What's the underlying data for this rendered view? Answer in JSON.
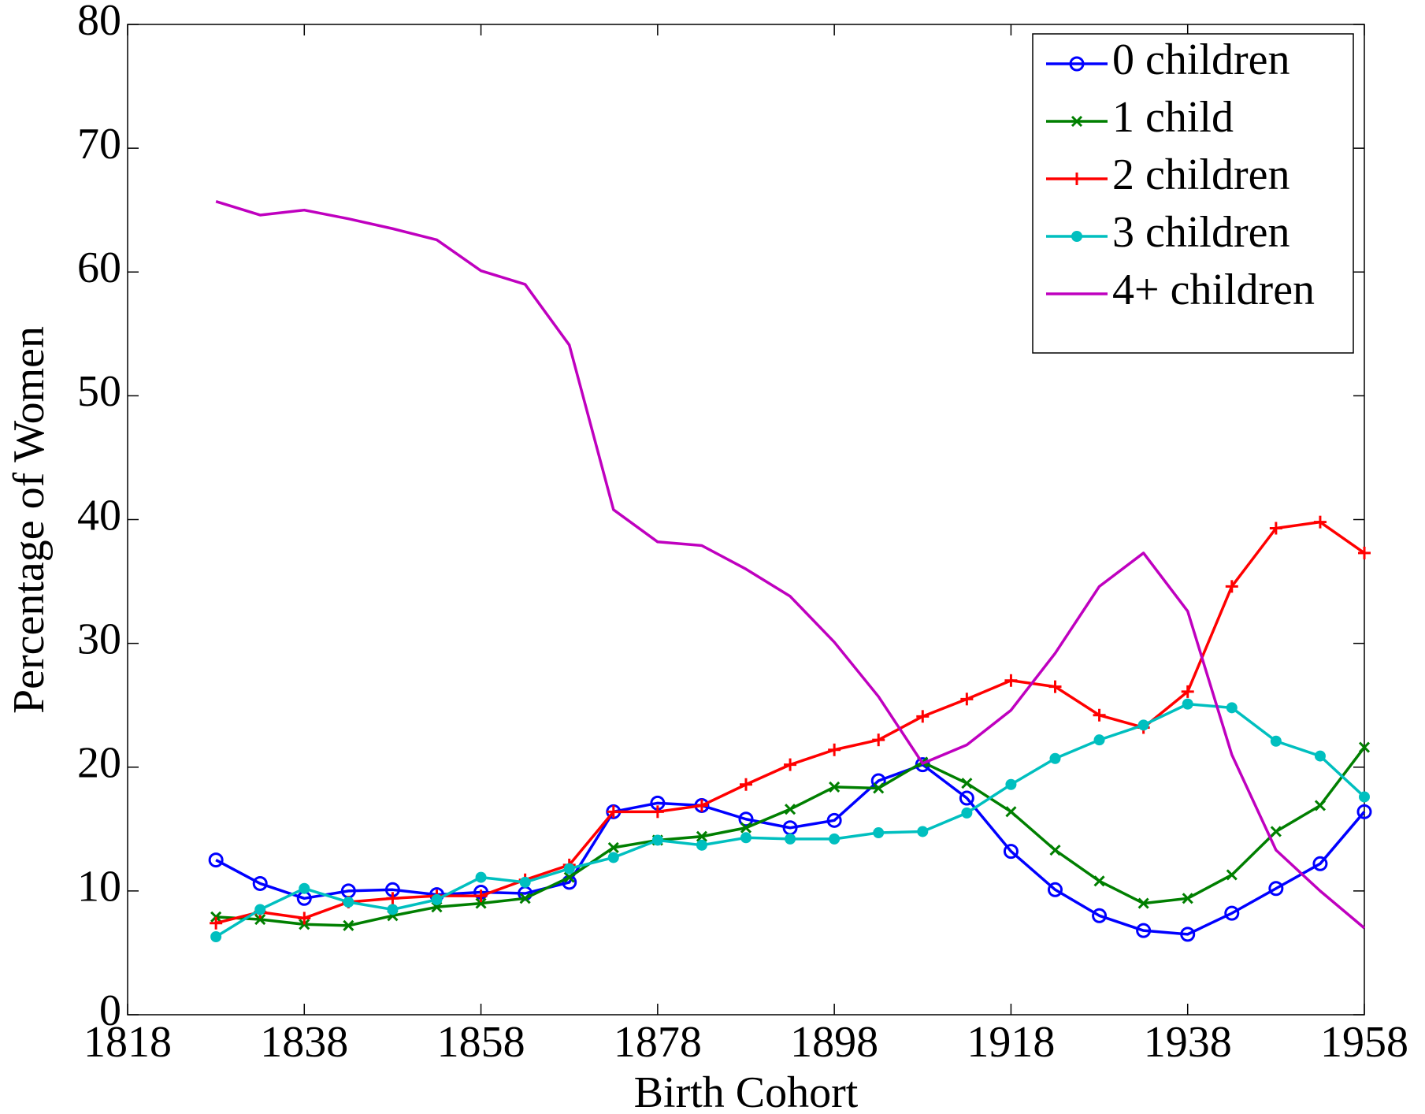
{
  "chart_data": {
    "type": "line",
    "xlabel": "Birth Cohort",
    "ylabel": "Percentage of Women",
    "x": [
      1828,
      1833,
      1838,
      1843,
      1848,
      1853,
      1858,
      1863,
      1868,
      1873,
      1878,
      1883,
      1888,
      1893,
      1898,
      1903,
      1908,
      1913,
      1918,
      1923,
      1928,
      1933,
      1938,
      1943,
      1948,
      1953,
      1958
    ],
    "series": [
      {
        "name": "0 children",
        "color": "#0000ff",
        "marker": "circle",
        "values": [
          12.5,
          10.6,
          9.4,
          10.0,
          10.1,
          9.7,
          9.9,
          9.8,
          10.7,
          16.4,
          17.1,
          16.9,
          15.8,
          15.1,
          15.7,
          18.9,
          20.2,
          17.5,
          13.2,
          10.1,
          8.0,
          6.8,
          6.5,
          8.2,
          10.2,
          12.2,
          16.4
        ]
      },
      {
        "name": "1 child",
        "color": "#007f00",
        "marker": "x",
        "values": [
          7.9,
          7.7,
          7.3,
          7.2,
          8.0,
          8.7,
          9.0,
          9.4,
          11.1,
          13.5,
          14.1,
          14.4,
          15.1,
          16.6,
          18.4,
          18.3,
          20.4,
          18.7,
          16.4,
          13.3,
          10.8,
          9.0,
          9.4,
          11.3,
          14.8,
          16.9,
          21.6
        ]
      },
      {
        "name": "2 children",
        "color": "#ff0000",
        "marker": "plus",
        "values": [
          7.4,
          8.3,
          7.8,
          9.1,
          9.4,
          9.6,
          9.6,
          10.9,
          12.1,
          16.4,
          16.4,
          16.9,
          18.6,
          20.2,
          21.4,
          22.2,
          24.1,
          25.5,
          27.0,
          26.5,
          24.2,
          23.2,
          26.1,
          34.6,
          39.3,
          39.8,
          37.3
        ]
      },
      {
        "name": "3 children",
        "color": "#00bfbf",
        "marker": "dot",
        "values": [
          6.3,
          8.5,
          10.2,
          9.1,
          8.5,
          9.3,
          11.1,
          10.7,
          11.8,
          12.7,
          14.1,
          13.7,
          14.3,
          14.2,
          14.2,
          14.7,
          14.8,
          16.3,
          18.6,
          20.7,
          22.2,
          23.4,
          25.1,
          24.8,
          22.1,
          20.9,
          17.6
        ]
      },
      {
        "name": "4+ children",
        "color": "#bf00bf",
        "marker": "none",
        "values": [
          65.7,
          64.6,
          65.0,
          64.3,
          63.5,
          62.6,
          60.1,
          59.0,
          54.1,
          40.8,
          38.2,
          37.9,
          36.0,
          33.8,
          30.1,
          25.7,
          20.3,
          21.8,
          24.6,
          29.2,
          34.6,
          37.3,
          32.6,
          21.0,
          13.3,
          10.0,
          7.0
        ]
      }
    ],
    "xlim": [
      1818,
      1958
    ],
    "xticks": [
      1818,
      1838,
      1858,
      1878,
      1898,
      1918,
      1938,
      1958
    ],
    "ylim": [
      0,
      80
    ],
    "yticks": [
      0,
      10,
      20,
      30,
      40,
      50,
      60,
      70,
      80
    ],
    "legend": "upper right"
  }
}
